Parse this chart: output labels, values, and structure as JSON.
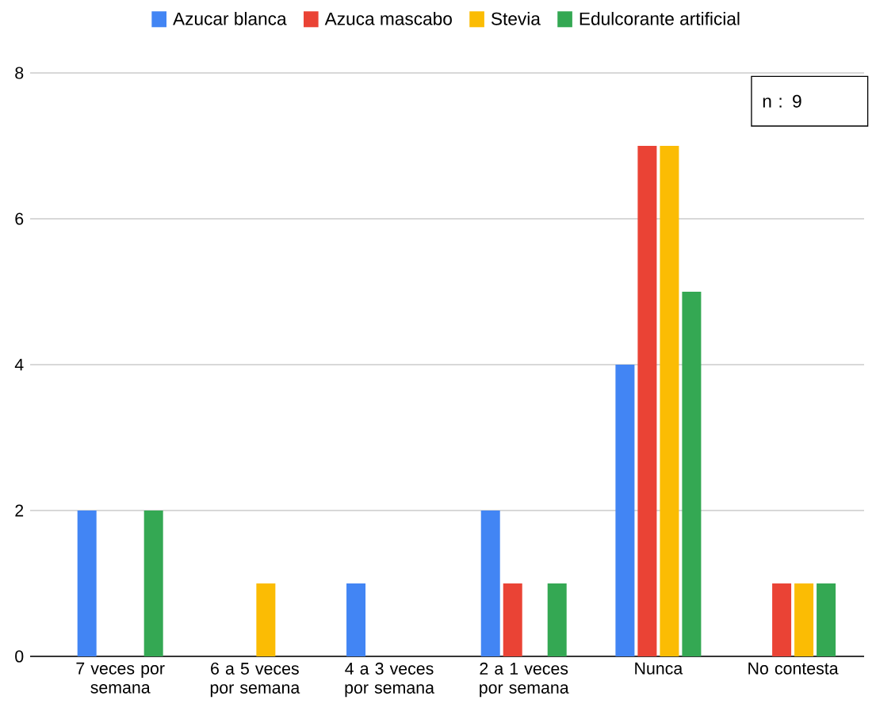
{
  "chart_data": {
    "type": "bar",
    "categories": [
      "7 veces por semana",
      "6 a 5 veces por semana",
      "4 a 3 veces por semana",
      "2 a 1 veces por semana",
      "Nunca",
      "No contesta"
    ],
    "series": [
      {
        "name": "Azucar blanca",
        "color": "#4285f4",
        "values": [
          2,
          0,
          1,
          2,
          4,
          0
        ]
      },
      {
        "name": "Azuca mascabo",
        "color": "#ea4335",
        "values": [
          0,
          0,
          0,
          1,
          7,
          1
        ]
      },
      {
        "name": "Stevia",
        "color": "#fbbc04",
        "values": [
          0,
          1,
          0,
          0,
          7,
          1
        ]
      },
      {
        "name": "Edulcorante artificial",
        "color": "#34a853",
        "values": [
          2,
          0,
          0,
          1,
          5,
          1
        ]
      }
    ],
    "ylim": [
      0,
      8
    ],
    "yticks": [
      0,
      2,
      4,
      6,
      8
    ],
    "grid": "y",
    "legend": "top",
    "annotations": [
      "n : 9"
    ]
  }
}
